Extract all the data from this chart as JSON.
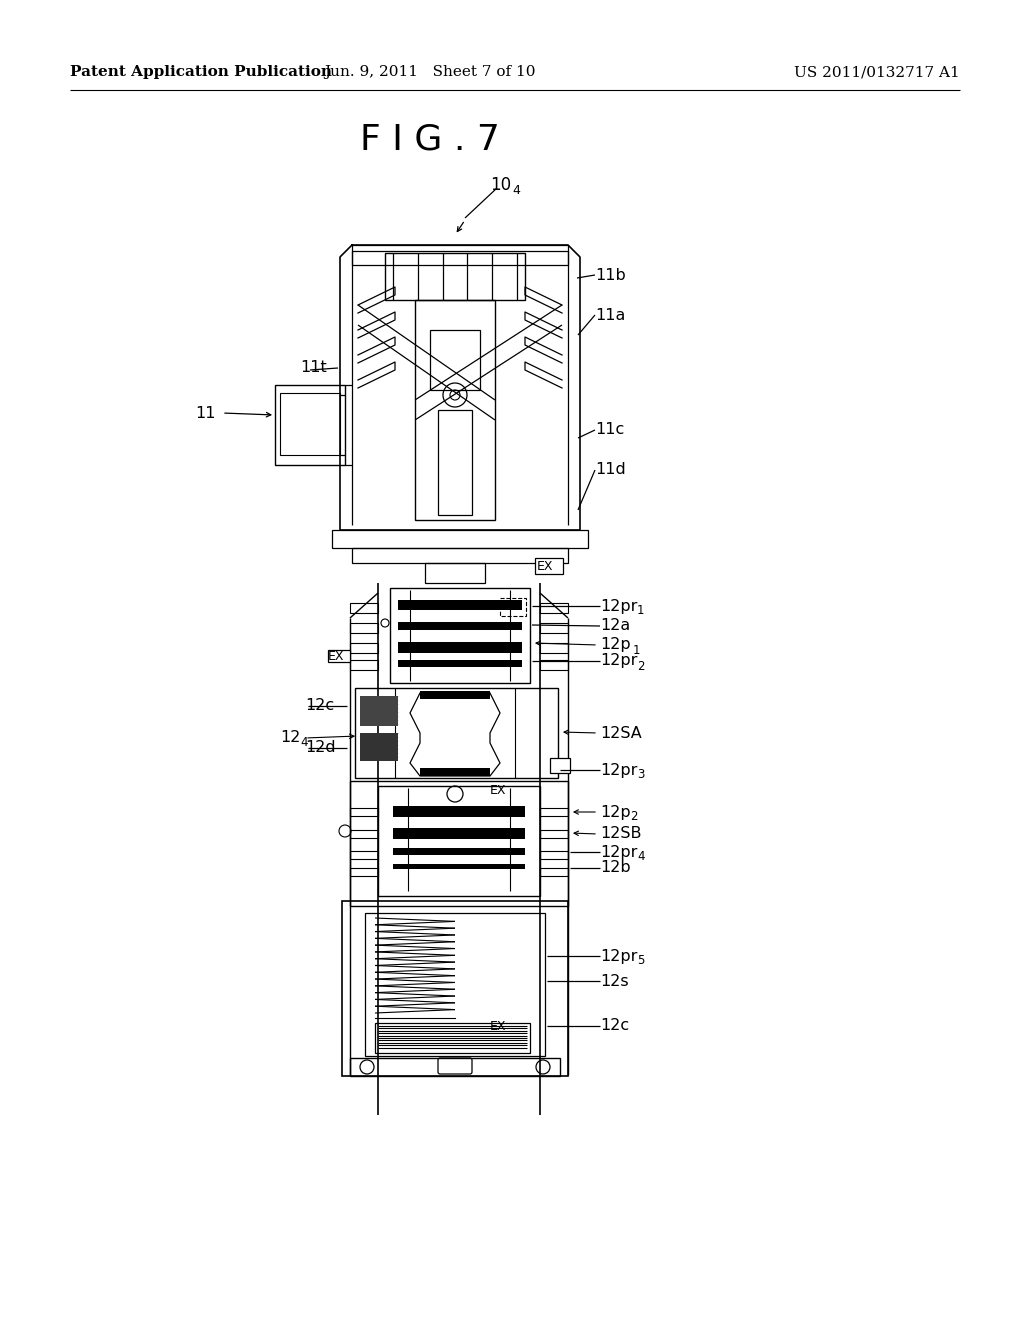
{
  "bg_color": "#ffffff",
  "fig_title": "F I G . 7",
  "header_left": "Patent Application Publication",
  "header_center": "Jun. 9, 2011   Sheet 7 of 10",
  "header_right": "US 2011/0132717 A1",
  "header_fontsize": 11,
  "title_fontsize": 26,
  "label_fontsize": 11.5,
  "line_color": "#000000",
  "line_width": 1.2
}
